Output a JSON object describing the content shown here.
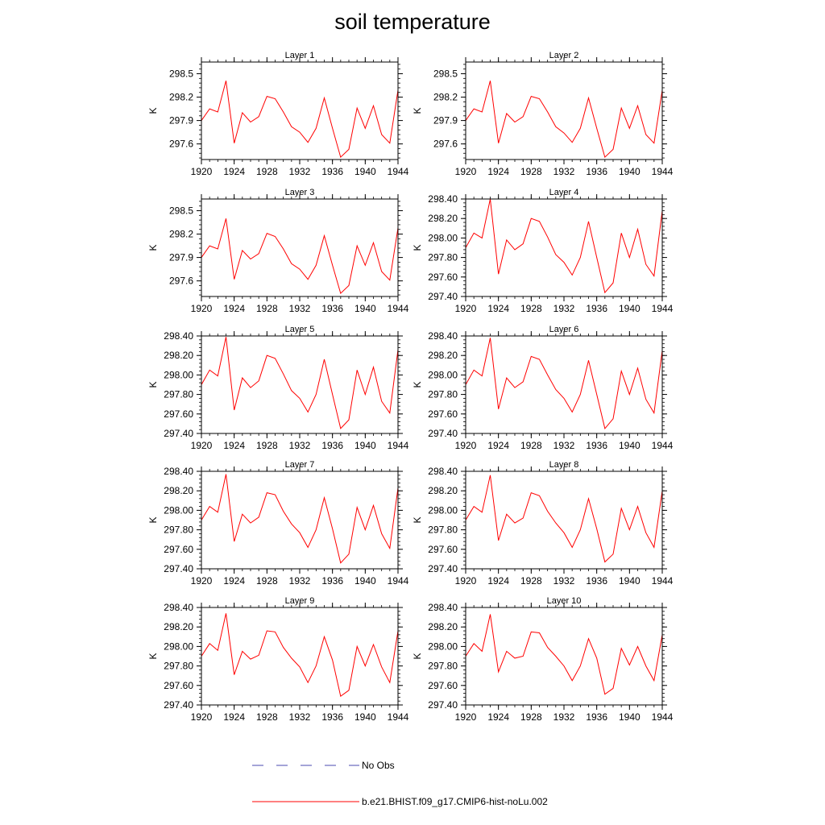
{
  "title": "soil temperature",
  "colors": {
    "model": "#ff0000",
    "obs": "#4a4ab0",
    "axis": "#000000"
  },
  "legend": [
    {
      "label": "No Obs",
      "style": "dashed",
      "color": "#4a4ab0"
    },
    {
      "label": "b.e21.BHIST.f09_g17.CMIP6-hist-noLu.002",
      "style": "solid",
      "color": "#ff0000"
    }
  ],
  "chart_data": [
    {
      "type": "line",
      "title": "Layer 1",
      "ylabel": "K",
      "xlim": [
        1920,
        1944
      ],
      "ylim": [
        297.4,
        298.65
      ],
      "x_ticks": [
        1920,
        1924,
        1928,
        1932,
        1936,
        1940,
        1944
      ],
      "y_ticks": [
        "297.6",
        "297.9",
        "298.2",
        "298.5"
      ],
      "series": [
        {
          "x": [
            1920,
            1921,
            1922,
            1923,
            1924,
            1925,
            1926,
            1927,
            1928,
            1929,
            1930,
            1931,
            1932,
            1933,
            1934,
            1935,
            1936,
            1937,
            1938,
            1939,
            1940,
            1941,
            1942,
            1943,
            1944
          ],
          "values": [
            297.9,
            298.05,
            298.01,
            298.41,
            297.61,
            298.0,
            297.88,
            297.95,
            298.21,
            298.18,
            298.01,
            297.82,
            297.75,
            297.62,
            297.8,
            298.19,
            297.8,
            297.43,
            297.53,
            298.06,
            297.8,
            298.09,
            297.72,
            297.61,
            298.29
          ]
        }
      ]
    },
    {
      "type": "line",
      "title": "Layer 2",
      "ylabel": "K",
      "xlim": [
        1920,
        1944
      ],
      "ylim": [
        297.4,
        298.65
      ],
      "x_ticks": [
        1920,
        1924,
        1928,
        1932,
        1936,
        1940,
        1944
      ],
      "y_ticks": [
        "297.6",
        "297.9",
        "298.2",
        "298.5"
      ],
      "series": [
        {
          "x": [
            1920,
            1921,
            1922,
            1923,
            1924,
            1925,
            1926,
            1927,
            1928,
            1929,
            1930,
            1931,
            1932,
            1933,
            1934,
            1935,
            1936,
            1937,
            1938,
            1939,
            1940,
            1941,
            1942,
            1943,
            1944
          ],
          "values": [
            297.9,
            298.05,
            298.01,
            298.41,
            297.61,
            297.99,
            297.88,
            297.95,
            298.21,
            298.18,
            298.01,
            297.82,
            297.74,
            297.62,
            297.8,
            298.19,
            297.8,
            297.43,
            297.53,
            298.06,
            297.8,
            298.09,
            297.72,
            297.61,
            298.29
          ]
        }
      ]
    },
    {
      "type": "line",
      "title": "Layer 3",
      "ylabel": "K",
      "xlim": [
        1920,
        1944
      ],
      "ylim": [
        297.4,
        298.65
      ],
      "x_ticks": [
        1920,
        1924,
        1928,
        1932,
        1936,
        1940,
        1944
      ],
      "y_ticks": [
        "297.6",
        "297.9",
        "298.2",
        "298.5"
      ],
      "series": [
        {
          "x": [
            1920,
            1921,
            1922,
            1923,
            1924,
            1925,
            1926,
            1927,
            1928,
            1929,
            1930,
            1931,
            1932,
            1933,
            1934,
            1935,
            1936,
            1937,
            1938,
            1939,
            1940,
            1941,
            1942,
            1943,
            1944
          ],
          "values": [
            297.9,
            298.05,
            298.01,
            298.4,
            297.62,
            297.99,
            297.88,
            297.95,
            298.21,
            298.17,
            298.01,
            297.82,
            297.75,
            297.62,
            297.8,
            298.18,
            297.8,
            297.44,
            297.54,
            298.05,
            297.8,
            298.09,
            297.72,
            297.61,
            298.28
          ]
        }
      ]
    },
    {
      "type": "line",
      "title": "Layer 4",
      "ylabel": "K",
      "xlim": [
        1920,
        1944
      ],
      "ylim": [
        297.4,
        298.4
      ],
      "x_ticks": [
        1920,
        1924,
        1928,
        1932,
        1936,
        1940,
        1944
      ],
      "y_ticks": [
        "297.40",
        "297.60",
        "297.80",
        "298.00",
        "298.20",
        "298.40"
      ],
      "series": [
        {
          "x": [
            1920,
            1921,
            1922,
            1923,
            1924,
            1925,
            1926,
            1927,
            1928,
            1929,
            1930,
            1931,
            1932,
            1933,
            1934,
            1935,
            1936,
            1937,
            1938,
            1939,
            1940,
            1941,
            1942,
            1943,
            1944
          ],
          "values": [
            297.9,
            298.05,
            298.0,
            298.4,
            297.63,
            297.98,
            297.88,
            297.94,
            298.2,
            298.17,
            298.01,
            297.83,
            297.75,
            297.62,
            297.8,
            298.17,
            297.8,
            297.44,
            297.54,
            298.05,
            297.8,
            298.09,
            297.73,
            297.61,
            298.28
          ]
        }
      ]
    },
    {
      "type": "line",
      "title": "Layer 5",
      "ylabel": "K",
      "xlim": [
        1920,
        1944
      ],
      "ylim": [
        297.4,
        298.4
      ],
      "x_ticks": [
        1920,
        1924,
        1928,
        1932,
        1936,
        1940,
        1944
      ],
      "y_ticks": [
        "297.40",
        "297.60",
        "297.80",
        "298.00",
        "298.20",
        "298.40"
      ],
      "series": [
        {
          "x": [
            1920,
            1921,
            1922,
            1923,
            1924,
            1925,
            1926,
            1927,
            1928,
            1929,
            1930,
            1931,
            1932,
            1933,
            1934,
            1935,
            1936,
            1937,
            1938,
            1939,
            1940,
            1941,
            1942,
            1943,
            1944
          ],
          "values": [
            297.9,
            298.05,
            297.99,
            298.39,
            297.64,
            297.97,
            297.87,
            297.94,
            298.2,
            298.17,
            298.01,
            297.84,
            297.76,
            297.62,
            297.8,
            298.16,
            297.8,
            297.45,
            297.54,
            298.05,
            297.8,
            298.08,
            297.73,
            297.61,
            298.26
          ]
        }
      ]
    },
    {
      "type": "line",
      "title": "Layer 6",
      "ylabel": "K",
      "xlim": [
        1920,
        1944
      ],
      "ylim": [
        297.4,
        298.4
      ],
      "x_ticks": [
        1920,
        1924,
        1928,
        1932,
        1936,
        1940,
        1944
      ],
      "y_ticks": [
        "297.40",
        "297.60",
        "297.80",
        "298.00",
        "298.20",
        "298.40"
      ],
      "series": [
        {
          "x": [
            1920,
            1921,
            1922,
            1923,
            1924,
            1925,
            1926,
            1927,
            1928,
            1929,
            1930,
            1931,
            1932,
            1933,
            1934,
            1935,
            1936,
            1937,
            1938,
            1939,
            1940,
            1941,
            1942,
            1943,
            1944
          ],
          "values": [
            297.9,
            298.05,
            297.99,
            298.38,
            297.65,
            297.97,
            297.87,
            297.93,
            298.19,
            298.16,
            298.0,
            297.85,
            297.76,
            297.62,
            297.8,
            298.15,
            297.8,
            297.45,
            297.55,
            298.04,
            297.8,
            298.07,
            297.75,
            297.61,
            298.25
          ]
        }
      ]
    },
    {
      "type": "line",
      "title": "Layer 7",
      "ylabel": "K",
      "xlim": [
        1920,
        1944
      ],
      "ylim": [
        297.4,
        298.4
      ],
      "x_ticks": [
        1920,
        1924,
        1928,
        1932,
        1936,
        1940,
        1944
      ],
      "y_ticks": [
        "297.40",
        "297.60",
        "297.80",
        "298.00",
        "298.20",
        "298.40"
      ],
      "series": [
        {
          "x": [
            1920,
            1921,
            1922,
            1923,
            1924,
            1925,
            1926,
            1927,
            1928,
            1929,
            1930,
            1931,
            1932,
            1933,
            1934,
            1935,
            1936,
            1937,
            1938,
            1939,
            1940,
            1941,
            1942,
            1943,
            1944
          ],
          "values": [
            297.9,
            298.04,
            297.98,
            298.37,
            297.68,
            297.96,
            297.87,
            297.93,
            298.18,
            298.16,
            297.99,
            297.86,
            297.77,
            297.62,
            297.8,
            298.13,
            297.81,
            297.46,
            297.55,
            298.03,
            297.8,
            298.05,
            297.76,
            297.61,
            298.23
          ]
        }
      ]
    },
    {
      "type": "line",
      "title": "Layer 8",
      "ylabel": "K",
      "xlim": [
        1920,
        1944
      ],
      "ylim": [
        297.4,
        298.4
      ],
      "x_ticks": [
        1920,
        1924,
        1928,
        1932,
        1936,
        1940,
        1944
      ],
      "y_ticks": [
        "297.40",
        "297.60",
        "297.80",
        "298.00",
        "298.20",
        "298.40"
      ],
      "series": [
        {
          "x": [
            1920,
            1921,
            1922,
            1923,
            1924,
            1925,
            1926,
            1927,
            1928,
            1929,
            1930,
            1931,
            1932,
            1933,
            1934,
            1935,
            1936,
            1937,
            1938,
            1939,
            1940,
            1941,
            1942,
            1943,
            1944
          ],
          "values": [
            297.9,
            298.04,
            297.98,
            298.36,
            297.69,
            297.96,
            297.87,
            297.92,
            298.18,
            298.15,
            297.99,
            297.87,
            297.77,
            297.62,
            297.8,
            298.12,
            297.81,
            297.47,
            297.55,
            298.02,
            297.8,
            298.04,
            297.77,
            297.62,
            298.2
          ]
        }
      ]
    },
    {
      "type": "line",
      "title": "Layer 9",
      "ylabel": "K",
      "xlim": [
        1920,
        1944
      ],
      "ylim": [
        297.4,
        298.4
      ],
      "x_ticks": [
        1920,
        1924,
        1928,
        1932,
        1936,
        1940,
        1944
      ],
      "y_ticks": [
        "297.40",
        "297.60",
        "297.80",
        "298.00",
        "298.20",
        "298.40"
      ],
      "series": [
        {
          "x": [
            1920,
            1921,
            1922,
            1923,
            1924,
            1925,
            1926,
            1927,
            1928,
            1929,
            1930,
            1931,
            1932,
            1933,
            1934,
            1935,
            1936,
            1937,
            1938,
            1939,
            1940,
            1941,
            1942,
            1943,
            1944
          ],
          "values": [
            297.9,
            298.03,
            297.96,
            298.34,
            297.71,
            297.95,
            297.87,
            297.91,
            298.16,
            298.15,
            297.99,
            297.88,
            297.79,
            297.63,
            297.8,
            298.1,
            297.86,
            297.49,
            297.55,
            298.0,
            297.8,
            298.02,
            297.79,
            297.63,
            298.16
          ]
        }
      ]
    },
    {
      "type": "line",
      "title": "Layer 10",
      "ylabel": "K",
      "xlim": [
        1920,
        1944
      ],
      "ylim": [
        297.4,
        298.4
      ],
      "x_ticks": [
        1920,
        1924,
        1928,
        1932,
        1936,
        1940,
        1944
      ],
      "y_ticks": [
        "297.40",
        "297.60",
        "297.80",
        "298.00",
        "298.20",
        "298.40"
      ],
      "series": [
        {
          "x": [
            1920,
            1921,
            1922,
            1923,
            1924,
            1925,
            1926,
            1927,
            1928,
            1929,
            1930,
            1931,
            1932,
            1933,
            1934,
            1935,
            1936,
            1937,
            1938,
            1939,
            1940,
            1941,
            1942,
            1943,
            1944
          ],
          "values": [
            297.9,
            298.03,
            297.95,
            298.33,
            297.74,
            297.95,
            297.88,
            297.9,
            298.15,
            298.14,
            297.99,
            297.9,
            297.8,
            297.65,
            297.8,
            298.08,
            297.88,
            297.51,
            297.57,
            297.98,
            297.81,
            298.0,
            297.8,
            297.65,
            298.12
          ]
        }
      ]
    }
  ]
}
